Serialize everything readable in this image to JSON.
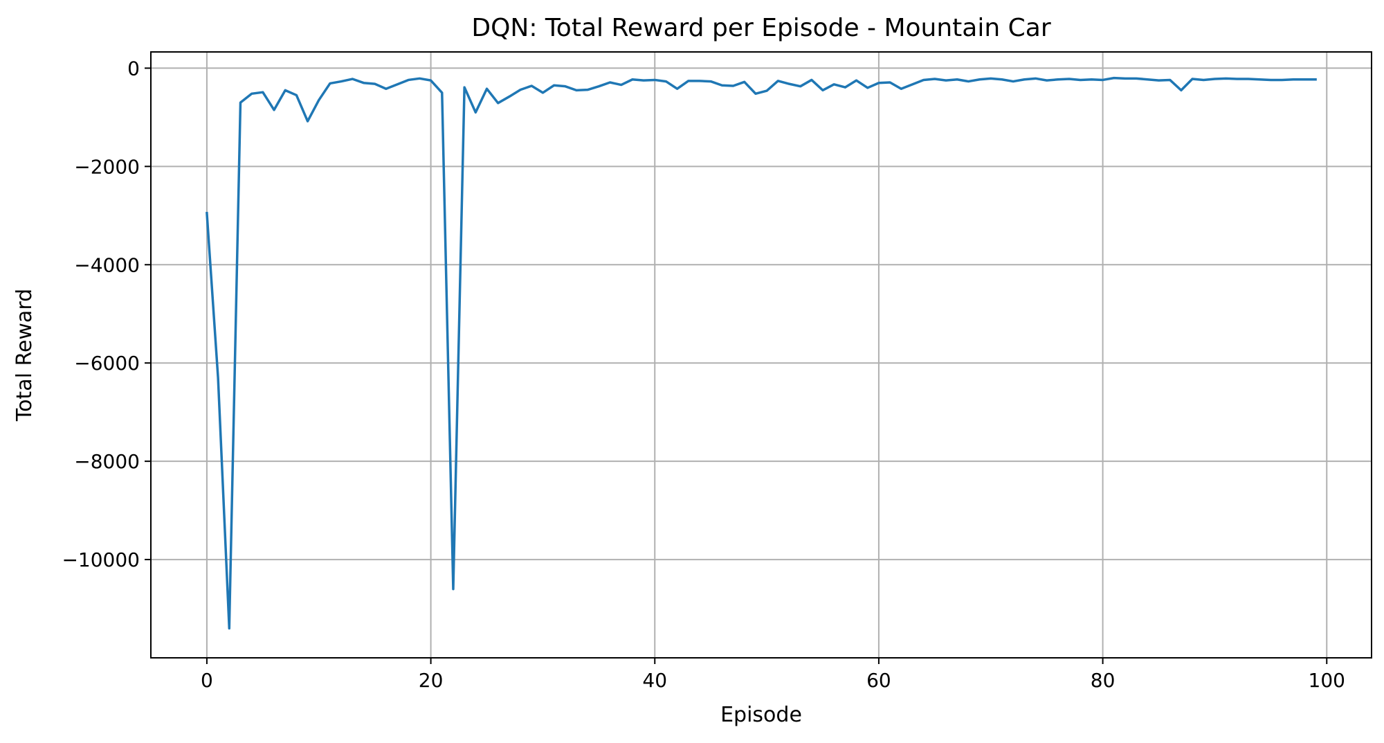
{
  "chart_data": {
    "type": "line",
    "title": "DQN: Total Reward per Episode - Mountain Car",
    "xlabel": "Episode",
    "ylabel": "Total Reward",
    "xlim": [
      -5,
      104
    ],
    "ylim": [
      -12000,
      330
    ],
    "xticks": [
      0,
      20,
      40,
      60,
      80,
      100
    ],
    "xtick_labels": [
      "0",
      "20",
      "40",
      "60",
      "80",
      "100"
    ],
    "yticks": [
      0,
      -2000,
      -4000,
      -6000,
      -8000,
      -10000
    ],
    "ytick_labels": [
      "0",
      "−2000",
      "−4000",
      "−6000",
      "−8000",
      "−10000"
    ],
    "grid": true,
    "series": [
      {
        "color": "#1f77b4",
        "x": [
          0,
          1,
          2,
          3,
          4,
          5,
          6,
          7,
          8,
          9,
          10,
          11,
          12,
          13,
          14,
          15,
          16,
          17,
          18,
          19,
          20,
          21,
          22,
          23,
          24,
          25,
          26,
          27,
          28,
          29,
          30,
          31,
          32,
          33,
          34,
          35,
          36,
          37,
          38,
          39,
          40,
          41,
          42,
          43,
          44,
          45,
          46,
          47,
          48,
          49,
          50,
          51,
          52,
          53,
          54,
          55,
          56,
          57,
          58,
          59,
          60,
          61,
          62,
          63,
          64,
          65,
          66,
          67,
          68,
          69,
          70,
          71,
          72,
          73,
          74,
          75,
          76,
          77,
          78,
          79,
          80,
          81,
          82,
          83,
          84,
          85,
          86,
          87,
          88,
          89,
          90,
          91,
          92,
          93,
          94,
          95,
          96,
          97,
          98,
          99
        ],
        "values": [
          -2950,
          -6300,
          -11400,
          -700,
          -520,
          -490,
          -850,
          -450,
          -550,
          -1080,
          -650,
          -310,
          -270,
          -220,
          -300,
          -320,
          -420,
          -330,
          -240,
          -210,
          -250,
          -500,
          -10600,
          -390,
          -900,
          -420,
          -710,
          -580,
          -440,
          -360,
          -500,
          -350,
          -370,
          -450,
          -440,
          -370,
          -290,
          -340,
          -230,
          -250,
          -240,
          -270,
          -420,
          -260,
          -260,
          -270,
          -350,
          -360,
          -280,
          -520,
          -460,
          -260,
          -320,
          -370,
          -240,
          -450,
          -330,
          -390,
          -250,
          -400,
          -300,
          -290,
          -420,
          -330,
          -240,
          -220,
          -250,
          -230,
          -270,
          -230,
          -210,
          -230,
          -270,
          -230,
          -210,
          -250,
          -230,
          -220,
          -240,
          -230,
          -240,
          -200,
          -210,
          -210,
          -230,
          -250,
          -240,
          -450,
          -220,
          -240,
          -220,
          -210,
          -220,
          -220,
          -230,
          -240,
          -240,
          -230,
          -230,
          -230
        ]
      }
    ]
  }
}
